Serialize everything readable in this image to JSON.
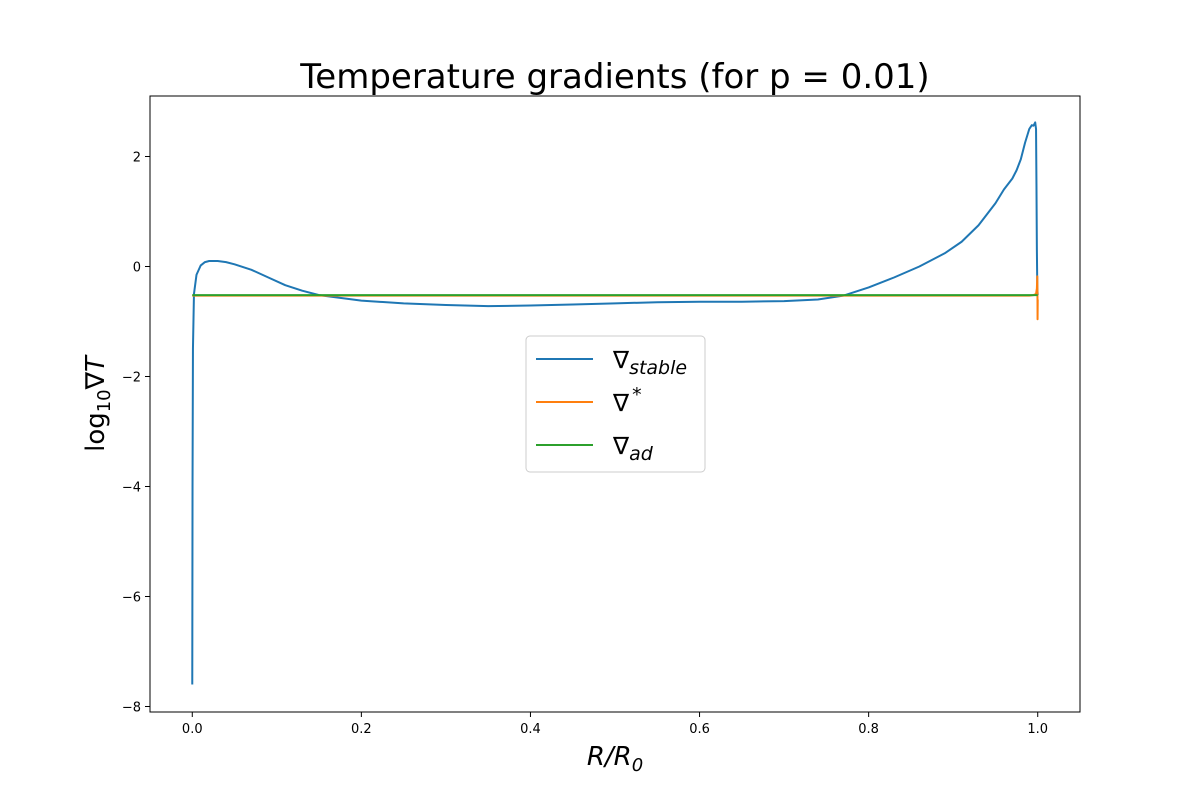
{
  "chart_data": {
    "type": "line",
    "title": "Temperature gradients (for p = 0.01)",
    "xlabel": {
      "base": "R/R",
      "sub": "0"
    },
    "ylabel": {
      "prefix": "log",
      "sub": "10",
      "suffix": "∇T"
    },
    "xlim": [
      -0.05,
      1.05
    ],
    "ylim": [
      -8.1,
      3.1
    ],
    "xticks": [
      {
        "value": 0.0,
        "label": "0.0"
      },
      {
        "value": 0.2,
        "label": "0.2"
      },
      {
        "value": 0.4,
        "label": "0.4"
      },
      {
        "value": 0.6,
        "label": "0.6"
      },
      {
        "value": 0.8,
        "label": "0.8"
      },
      {
        "value": 1.0,
        "label": "1.0"
      }
    ],
    "yticks": [
      {
        "value": 2,
        "label": "2"
      },
      {
        "value": 0,
        "label": "0"
      },
      {
        "value": -2,
        "label": "−2"
      },
      {
        "value": -4,
        "label": "−4"
      },
      {
        "value": -6,
        "label": "−6"
      },
      {
        "value": -8,
        "label": "−8"
      }
    ],
    "grid": false,
    "legend_position": "center",
    "series": [
      {
        "name": "stable",
        "symbol": "∇",
        "sub": "stable",
        "color": "#1f77b4",
        "points": [
          [
            0.0,
            -7.6
          ],
          [
            0.0003,
            -4.0
          ],
          [
            0.0008,
            -1.5
          ],
          [
            0.002,
            -0.5
          ],
          [
            0.005,
            -0.15
          ],
          [
            0.01,
            0.02
          ],
          [
            0.015,
            0.08
          ],
          [
            0.02,
            0.1
          ],
          [
            0.03,
            0.1
          ],
          [
            0.04,
            0.08
          ],
          [
            0.05,
            0.04
          ],
          [
            0.07,
            -0.06
          ],
          [
            0.09,
            -0.2
          ],
          [
            0.11,
            -0.34
          ],
          [
            0.13,
            -0.44
          ],
          [
            0.15,
            -0.52
          ],
          [
            0.2,
            -0.62
          ],
          [
            0.25,
            -0.67
          ],
          [
            0.3,
            -0.7
          ],
          [
            0.35,
            -0.72
          ],
          [
            0.4,
            -0.71
          ],
          [
            0.45,
            -0.69
          ],
          [
            0.5,
            -0.67
          ],
          [
            0.55,
            -0.65
          ],
          [
            0.6,
            -0.64
          ],
          [
            0.65,
            -0.64
          ],
          [
            0.7,
            -0.63
          ],
          [
            0.74,
            -0.6
          ],
          [
            0.77,
            -0.53
          ],
          [
            0.8,
            -0.38
          ],
          [
            0.83,
            -0.2
          ],
          [
            0.86,
            0.0
          ],
          [
            0.89,
            0.24
          ],
          [
            0.91,
            0.45
          ],
          [
            0.93,
            0.75
          ],
          [
            0.95,
            1.15
          ],
          [
            0.96,
            1.4
          ],
          [
            0.97,
            1.6
          ],
          [
            0.975,
            1.75
          ],
          [
            0.98,
            1.95
          ],
          [
            0.985,
            2.25
          ],
          [
            0.99,
            2.5
          ],
          [
            0.993,
            2.57
          ],
          [
            0.995,
            2.56
          ],
          [
            0.997,
            2.62
          ],
          [
            0.998,
            2.5
          ],
          [
            0.9985,
            1.5
          ],
          [
            0.999,
            0.3
          ],
          [
            0.9995,
            -0.4
          ],
          [
            1.0,
            -0.52
          ]
        ]
      },
      {
        "name": "star",
        "symbol": "∇",
        "sup": "*",
        "color": "#ff7f0e",
        "points": [
          [
            0.0,
            -0.53
          ],
          [
            0.5,
            -0.53
          ],
          [
            0.99,
            -0.53
          ],
          [
            0.995,
            -0.52
          ],
          [
            0.998,
            -0.5
          ],
          [
            0.999,
            -0.4
          ],
          [
            0.9995,
            -0.18
          ],
          [
            0.9997,
            -0.55
          ],
          [
            0.9998,
            -0.96
          ],
          [
            1.0,
            -0.6
          ]
        ]
      },
      {
        "name": "ad",
        "symbol": "∇",
        "sub": "ad",
        "color": "#2ca02c",
        "points": [
          [
            0.0,
            -0.52
          ],
          [
            1.0,
            -0.52
          ]
        ]
      }
    ]
  }
}
